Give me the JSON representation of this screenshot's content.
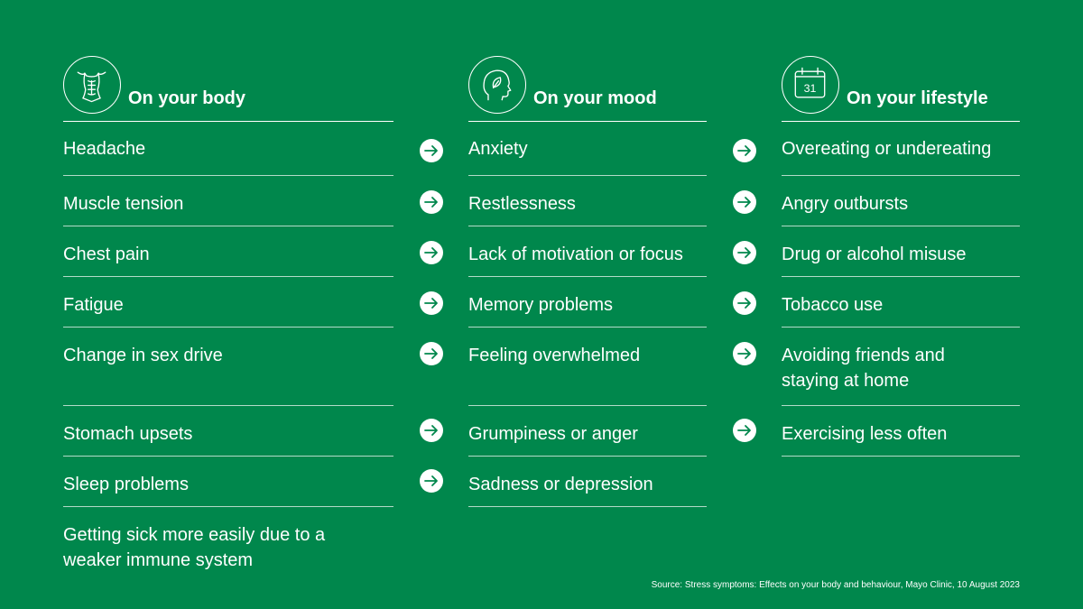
{
  "columns": {
    "body": {
      "title": "On your body",
      "icon": "torso-icon",
      "items": [
        "Headache",
        "Muscle tension",
        "Chest pain",
        "Fatigue",
        "Change in sex drive",
        "Stomach upsets",
        "Sleep problems",
        "Getting sick more easily due to a weaker immune system"
      ]
    },
    "mood": {
      "title": "On your mood",
      "icon": "head-leaf-icon",
      "items": [
        "Anxiety",
        "Restlessness",
        "Lack of motivation or focus",
        "Memory problems",
        "Feeling overwhelmed",
        "Grumpiness or anger",
        "Sadness or depression"
      ]
    },
    "lifestyle": {
      "title": "On your lifestyle",
      "icon": "calendar-icon",
      "calendar_day": "31",
      "items": [
        "Overeating or undereating",
        "Angry outbursts",
        "Drug or alcohol misuse",
        "Tobacco use",
        "Avoiding friends and staying at home",
        "Exercising less often"
      ]
    }
  },
  "source": "Source: Stress symptoms: Effects on your body and behaviour, Mayo Clinic, 10 August 2023",
  "colors": {
    "background": "#00874C",
    "foreground": "#FFFFFF",
    "arrow": "#00874C"
  }
}
